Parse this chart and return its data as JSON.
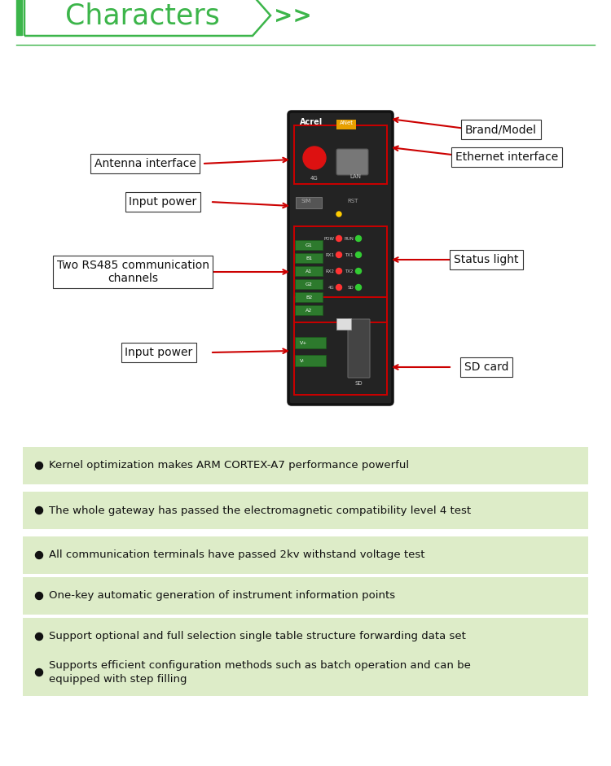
{
  "title": "Characters",
  "title_color": "#3cb54a",
  "bg_color": "#ffffff",
  "bullet_points": [
    "Kernel optimization makes ARM CORTEX-A7 performance powerful",
    "The whole gateway has passed the electromagnetic compatibility level 4 test",
    "All communication terminals have passed 2kv withstand voltage test",
    "One-key automatic generation of instrument information points",
    "Support optional and full selection single table structure forwarding data set",
    "Supports efficient configuration methods such as batch operation and can be\nequipped with step filling"
  ],
  "bullet_bg": "#ddecc8",
  "labels": {
    "brand_model": "Brand/Model",
    "ethernet": "Ethernet interface",
    "antenna": "Antenna interface",
    "input_power_top": "Input power",
    "rs485": "Two RS485 communication\nchannels",
    "status_light": "Status light",
    "input_power_bot": "Input power",
    "sd_card": "SD card"
  },
  "arrow_color": "#cc0000"
}
